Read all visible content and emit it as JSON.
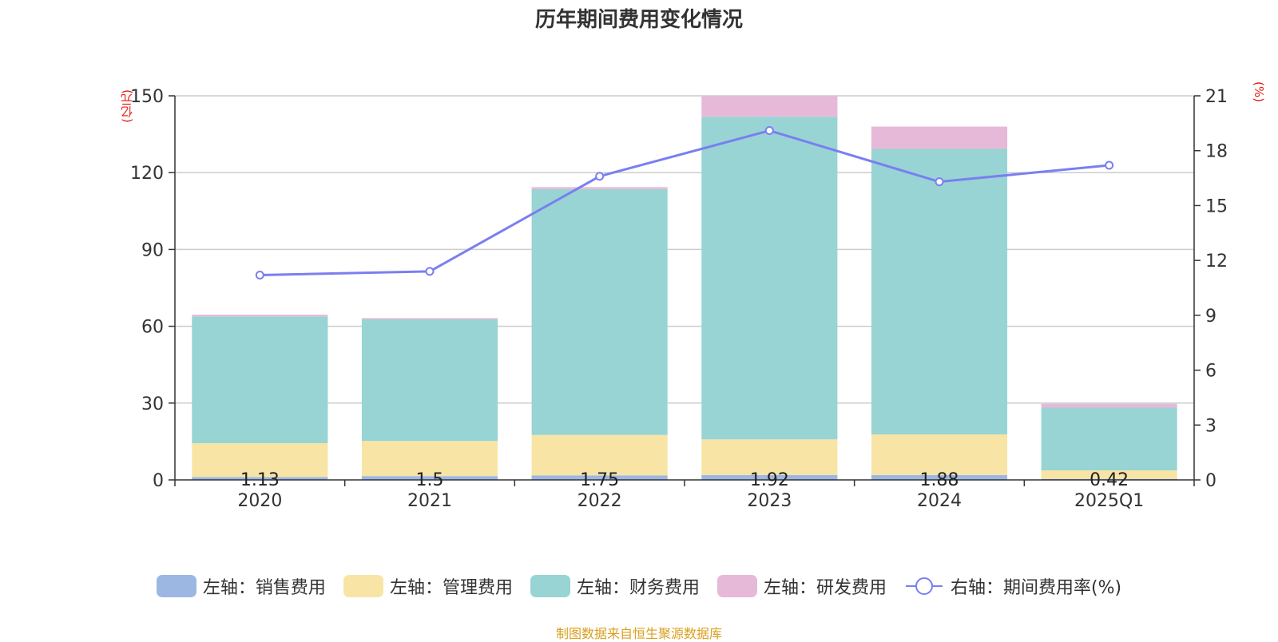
{
  "chart_data": {
    "type": "bar",
    "title": "历年期间费用变化情况",
    "left_unit": "(亿元)",
    "right_unit": "(%)",
    "categories": [
      "2020",
      "2021",
      "2022",
      "2023",
      "2024",
      "2025Q1"
    ],
    "left_axis": {
      "min": 0,
      "max": 150,
      "ticks": [
        "0",
        "30",
        "60",
        "90",
        "120",
        "150"
      ]
    },
    "right_axis": {
      "min": 0,
      "max": 21,
      "ticks": [
        "0",
        "3",
        "6",
        "9",
        "12",
        "15",
        "18",
        "21"
      ]
    },
    "grid": true,
    "legend_position": "bottom",
    "series": [
      {
        "name": "左轴：销售费用",
        "axis": "left",
        "kind": "bar",
        "color": "#9db7e3",
        "values": [
          1.13,
          1.5,
          1.75,
          1.92,
          1.88,
          0.42
        ],
        "labels": [
          "1.13",
          "1.5",
          "1.75",
          "1.92",
          "1.88",
          "0.42"
        ]
      },
      {
        "name": "左轴：管理费用",
        "axis": "left",
        "kind": "bar",
        "color": "#f8e5a6",
        "values": [
          13.2,
          13.7,
          15.8,
          13.9,
          15.9,
          3.3
        ]
      },
      {
        "name": "左轴：财务费用",
        "axis": "left",
        "kind": "bar",
        "color": "#98d4d4",
        "values": [
          49.5,
          47.5,
          96.0,
          126.0,
          111.5,
          24.5
        ]
      },
      {
        "name": "左轴：研发费用",
        "axis": "left",
        "kind": "bar",
        "color": "#e7b9d8",
        "values": [
          0.7,
          0.5,
          0.8,
          8.0,
          8.7,
          1.5
        ]
      },
      {
        "name": "右轴：期间费用率(%)",
        "axis": "right",
        "kind": "line",
        "color": "#7a7ff0",
        "values": [
          11.2,
          11.4,
          16.6,
          19.1,
          16.3,
          17.2
        ]
      }
    ]
  },
  "source": "制图数据来自恒生聚源数据库"
}
